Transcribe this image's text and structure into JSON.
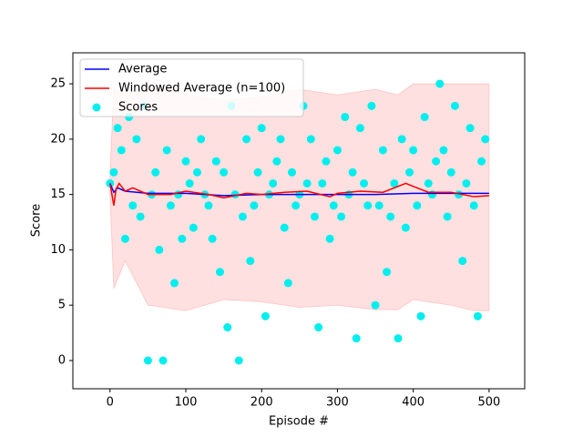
{
  "chart_data": {
    "type": "scatter",
    "x_label": "Episode #",
    "y_label": "Score",
    "xlim": [
      -49,
      547
    ],
    "ylim": [
      -2.55,
      27.8
    ],
    "xticks": [
      0,
      100,
      200,
      300,
      400,
      500
    ],
    "yticks": [
      0,
      5,
      10,
      15,
      20,
      25
    ],
    "legend": "upper left",
    "band": {
      "color": "#ff0000",
      "x": [
        0,
        5,
        20,
        50,
        100,
        150,
        200,
        250,
        300,
        350,
        380,
        400,
        450,
        480,
        500
      ],
      "upper": [
        17,
        24.5,
        24,
        25,
        24,
        23.5,
        23.8,
        24.5,
        24,
        24.5,
        24,
        25,
        25,
        25,
        25
      ],
      "lower": [
        15,
        6.5,
        9,
        5,
        4.5,
        5.5,
        5.3,
        4.8,
        5,
        4.6,
        4.6,
        5.5,
        5.0,
        4.5,
        4.5
      ]
    },
    "series": [
      {
        "name": "Average",
        "color": "#0000ff",
        "mode": "line",
        "x": [
          0,
          5,
          10,
          20,
          50,
          100,
          150,
          200,
          250,
          300,
          350,
          400,
          450,
          500
        ],
        "values": [
          16,
          15.2,
          15.6,
          15.3,
          15.1,
          15.1,
          14.9,
          15.0,
          15.0,
          15.0,
          15.0,
          15.1,
          15.1,
          15.1
        ]
      },
      {
        "name": "Windowed Average (n=100)",
        "color": "#ff0000",
        "mode": "line",
        "x": [
          0,
          5,
          8,
          12,
          20,
          30,
          50,
          80,
          100,
          130,
          150,
          180,
          200,
          230,
          260,
          290,
          300,
          330,
          360,
          390,
          420,
          450,
          480,
          500
        ],
        "values": [
          16,
          14,
          15.5,
          16,
          15.3,
          15.6,
          15.0,
          15.0,
          15.3,
          15.0,
          14.7,
          15.1,
          15.0,
          15.2,
          15.3,
          14.8,
          15.1,
          15.3,
          15.2,
          16.0,
          15.2,
          15.2,
          14.8,
          14.9
        ]
      },
      {
        "name": "Scores",
        "color": "#00eeee",
        "mode": "markers",
        "x": [
          0,
          5,
          10,
          15,
          20,
          25,
          30,
          35,
          40,
          45,
          50,
          55,
          60,
          65,
          70,
          75,
          80,
          85,
          90,
          95,
          100,
          105,
          110,
          115,
          120,
          125,
          130,
          135,
          140,
          145,
          150,
          155,
          160,
          165,
          170,
          175,
          180,
          185,
          190,
          195,
          200,
          205,
          210,
          215,
          220,
          225,
          230,
          235,
          240,
          245,
          250,
          255,
          260,
          265,
          270,
          275,
          280,
          285,
          290,
          295,
          300,
          305,
          310,
          315,
          320,
          325,
          330,
          335,
          340,
          345,
          350,
          355,
          360,
          365,
          370,
          375,
          380,
          385,
          390,
          395,
          400,
          405,
          410,
          415,
          420,
          425,
          430,
          435,
          440,
          445,
          450,
          455,
          460,
          465,
          470,
          475,
          480,
          485,
          490,
          495
        ],
        "values": [
          16,
          17,
          21,
          19,
          11,
          22,
          14,
          20,
          13,
          23,
          0,
          15,
          17,
          10,
          0,
          19,
          14,
          7,
          15,
          11,
          18,
          16,
          12,
          17,
          20,
          15,
          14,
          11,
          18,
          8,
          17,
          3,
          23,
          15,
          0,
          13,
          20,
          9,
          14,
          17,
          21,
          4,
          15,
          16,
          18,
          20,
          12,
          7,
          17,
          14,
          15,
          23,
          16,
          20,
          13,
          3,
          16,
          18,
          11,
          14,
          19,
          13,
          22,
          15,
          17,
          2,
          21,
          16,
          14,
          23,
          5,
          14,
          19,
          8,
          13,
          16,
          2,
          20,
          12,
          17,
          19,
          14,
          4,
          22,
          16,
          15,
          18,
          25,
          19,
          13,
          17,
          23,
          15,
          9,
          16,
          21,
          14,
          4,
          18,
          20
        ]
      }
    ]
  }
}
